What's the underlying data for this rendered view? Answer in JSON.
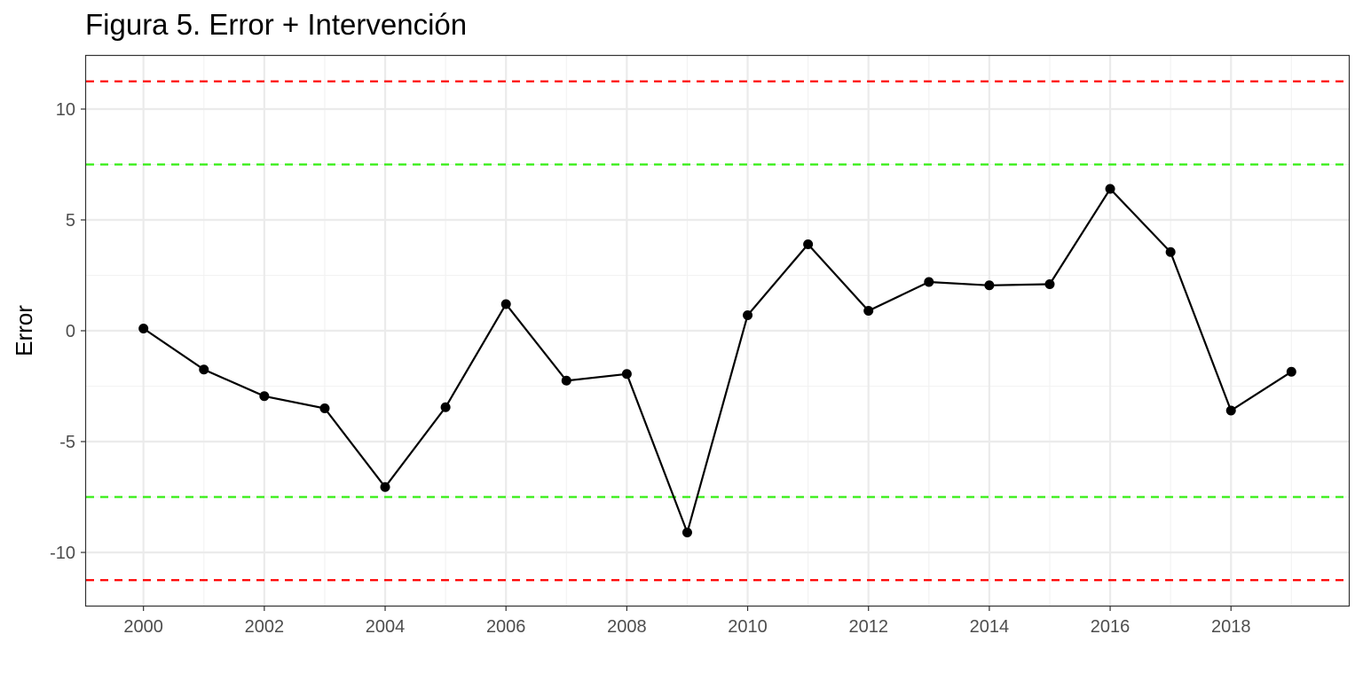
{
  "chart_data": {
    "type": "line",
    "title": "Figura 5. Error + Intervención",
    "xlabel": "",
    "ylabel": "Error",
    "xlim": [
      1999.05,
      2019.95
    ],
    "ylim": [
      -12.4,
      12.4
    ],
    "x_ticks": [
      2000,
      2002,
      2004,
      2006,
      2008,
      2010,
      2012,
      2014,
      2016,
      2018
    ],
    "y_ticks": [
      -10,
      -5,
      0,
      5,
      10
    ],
    "y_tick_labels": [
      "-10",
      "-5",
      "0",
      "5",
      "10"
    ],
    "grid": true,
    "legend": "none",
    "series": [
      {
        "x": [
          2000,
          2001,
          2002,
          2003,
          2004,
          2005,
          2006,
          2007,
          2008,
          2009,
          2010,
          2011,
          2012,
          2013,
          2014,
          2015,
          2016,
          2017,
          2018,
          2019
        ],
        "values": [
          0.1,
          -1.75,
          -2.95,
          -3.5,
          -7.05,
          -3.45,
          1.2,
          -2.25,
          -1.95,
          -9.1,
          0.7,
          3.9,
          0.9,
          2.2,
          2.05,
          2.1,
          6.4,
          3.55,
          -3.6,
          -1.85
        ],
        "color": "#000000"
      }
    ],
    "reference_lines": [
      {
        "y": 11.25,
        "color": "#ff0000",
        "style": "dashed"
      },
      {
        "y": 7.5,
        "color": "#33ee11",
        "style": "dashed"
      },
      {
        "y": -7.5,
        "color": "#33ee11",
        "style": "dashed"
      },
      {
        "y": -11.25,
        "color": "#ff0000",
        "style": "dashed"
      }
    ]
  }
}
